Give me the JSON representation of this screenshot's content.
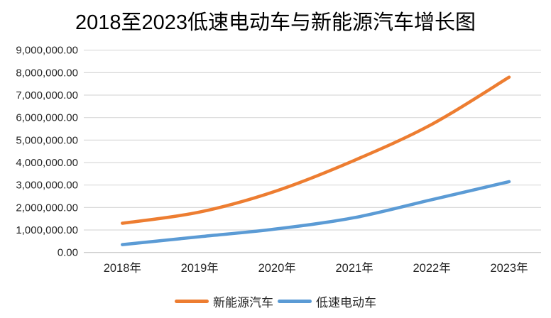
{
  "chart_data": {
    "type": "line",
    "title": "2018至2023低速电动车与新能源汽车增长图",
    "categories": [
      "2018年",
      "2019年",
      "2020年",
      "2021年",
      "2022年",
      "2023年"
    ],
    "series": [
      {
        "name": "新能源汽车",
        "color": "#ED7D31",
        "values": [
          1300000,
          1800000,
          2750000,
          4100000,
          5700000,
          7800000
        ]
      },
      {
        "name": "低速电动车",
        "color": "#5B9BD5",
        "values": [
          350000,
          700000,
          1050000,
          1550000,
          2350000,
          3150000
        ]
      }
    ],
    "xlabel": "",
    "ylabel": "",
    "ylim": [
      0,
      9000000
    ],
    "ytick_step": 1000000,
    "ytick_labels": [
      "0.00",
      "1,000,000.00",
      "2,000,000.00",
      "3,000,000.00",
      "4,000,000.00",
      "5,000,000.00",
      "6,000,000.00",
      "7,000,000.00",
      "8,000,000.00",
      "9,000,000.00"
    ],
    "grid": "horizontal",
    "smooth_lines": true,
    "legend_position": "bottom"
  },
  "colors": {
    "gridline": "#D9D9D9",
    "axis_line": "#C6C6C6",
    "axis_text": "#262626",
    "title_text": "#000000",
    "background": "#FFFFFF"
  }
}
